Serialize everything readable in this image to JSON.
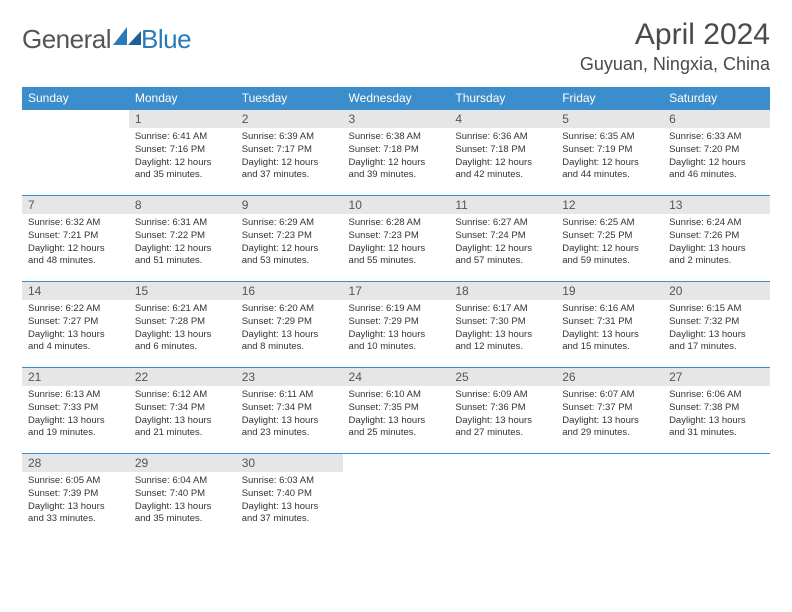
{
  "logo": {
    "textA": "General",
    "textB": "Blue"
  },
  "title": "April 2024",
  "location": "Guyuan, Ningxia, China",
  "colors": {
    "header_bg": "#3c8dcc",
    "header_text": "#ffffff",
    "daynum_bg": "#e6e6e6",
    "cell_border": "#3c8dcc",
    "body_text": "#333333",
    "logo_gray": "#555555",
    "logo_blue": "#2a7ab8"
  },
  "weekdays": [
    "Sunday",
    "Monday",
    "Tuesday",
    "Wednesday",
    "Thursday",
    "Friday",
    "Saturday"
  ],
  "weeks": [
    [
      {
        "n": "",
        "sr": "",
        "ss": "",
        "dl": ""
      },
      {
        "n": "1",
        "sr": "Sunrise: 6:41 AM",
        "ss": "Sunset: 7:16 PM",
        "dl": "Daylight: 12 hours and 35 minutes."
      },
      {
        "n": "2",
        "sr": "Sunrise: 6:39 AM",
        "ss": "Sunset: 7:17 PM",
        "dl": "Daylight: 12 hours and 37 minutes."
      },
      {
        "n": "3",
        "sr": "Sunrise: 6:38 AM",
        "ss": "Sunset: 7:18 PM",
        "dl": "Daylight: 12 hours and 39 minutes."
      },
      {
        "n": "4",
        "sr": "Sunrise: 6:36 AM",
        "ss": "Sunset: 7:18 PM",
        "dl": "Daylight: 12 hours and 42 minutes."
      },
      {
        "n": "5",
        "sr": "Sunrise: 6:35 AM",
        "ss": "Sunset: 7:19 PM",
        "dl": "Daylight: 12 hours and 44 minutes."
      },
      {
        "n": "6",
        "sr": "Sunrise: 6:33 AM",
        "ss": "Sunset: 7:20 PM",
        "dl": "Daylight: 12 hours and 46 minutes."
      }
    ],
    [
      {
        "n": "7",
        "sr": "Sunrise: 6:32 AM",
        "ss": "Sunset: 7:21 PM",
        "dl": "Daylight: 12 hours and 48 minutes."
      },
      {
        "n": "8",
        "sr": "Sunrise: 6:31 AM",
        "ss": "Sunset: 7:22 PM",
        "dl": "Daylight: 12 hours and 51 minutes."
      },
      {
        "n": "9",
        "sr": "Sunrise: 6:29 AM",
        "ss": "Sunset: 7:23 PM",
        "dl": "Daylight: 12 hours and 53 minutes."
      },
      {
        "n": "10",
        "sr": "Sunrise: 6:28 AM",
        "ss": "Sunset: 7:23 PM",
        "dl": "Daylight: 12 hours and 55 minutes."
      },
      {
        "n": "11",
        "sr": "Sunrise: 6:27 AM",
        "ss": "Sunset: 7:24 PM",
        "dl": "Daylight: 12 hours and 57 minutes."
      },
      {
        "n": "12",
        "sr": "Sunrise: 6:25 AM",
        "ss": "Sunset: 7:25 PM",
        "dl": "Daylight: 12 hours and 59 minutes."
      },
      {
        "n": "13",
        "sr": "Sunrise: 6:24 AM",
        "ss": "Sunset: 7:26 PM",
        "dl": "Daylight: 13 hours and 2 minutes."
      }
    ],
    [
      {
        "n": "14",
        "sr": "Sunrise: 6:22 AM",
        "ss": "Sunset: 7:27 PM",
        "dl": "Daylight: 13 hours and 4 minutes."
      },
      {
        "n": "15",
        "sr": "Sunrise: 6:21 AM",
        "ss": "Sunset: 7:28 PM",
        "dl": "Daylight: 13 hours and 6 minutes."
      },
      {
        "n": "16",
        "sr": "Sunrise: 6:20 AM",
        "ss": "Sunset: 7:29 PM",
        "dl": "Daylight: 13 hours and 8 minutes."
      },
      {
        "n": "17",
        "sr": "Sunrise: 6:19 AM",
        "ss": "Sunset: 7:29 PM",
        "dl": "Daylight: 13 hours and 10 minutes."
      },
      {
        "n": "18",
        "sr": "Sunrise: 6:17 AM",
        "ss": "Sunset: 7:30 PM",
        "dl": "Daylight: 13 hours and 12 minutes."
      },
      {
        "n": "19",
        "sr": "Sunrise: 6:16 AM",
        "ss": "Sunset: 7:31 PM",
        "dl": "Daylight: 13 hours and 15 minutes."
      },
      {
        "n": "20",
        "sr": "Sunrise: 6:15 AM",
        "ss": "Sunset: 7:32 PM",
        "dl": "Daylight: 13 hours and 17 minutes."
      }
    ],
    [
      {
        "n": "21",
        "sr": "Sunrise: 6:13 AM",
        "ss": "Sunset: 7:33 PM",
        "dl": "Daylight: 13 hours and 19 minutes."
      },
      {
        "n": "22",
        "sr": "Sunrise: 6:12 AM",
        "ss": "Sunset: 7:34 PM",
        "dl": "Daylight: 13 hours and 21 minutes."
      },
      {
        "n": "23",
        "sr": "Sunrise: 6:11 AM",
        "ss": "Sunset: 7:34 PM",
        "dl": "Daylight: 13 hours and 23 minutes."
      },
      {
        "n": "24",
        "sr": "Sunrise: 6:10 AM",
        "ss": "Sunset: 7:35 PM",
        "dl": "Daylight: 13 hours and 25 minutes."
      },
      {
        "n": "25",
        "sr": "Sunrise: 6:09 AM",
        "ss": "Sunset: 7:36 PM",
        "dl": "Daylight: 13 hours and 27 minutes."
      },
      {
        "n": "26",
        "sr": "Sunrise: 6:07 AM",
        "ss": "Sunset: 7:37 PM",
        "dl": "Daylight: 13 hours and 29 minutes."
      },
      {
        "n": "27",
        "sr": "Sunrise: 6:06 AM",
        "ss": "Sunset: 7:38 PM",
        "dl": "Daylight: 13 hours and 31 minutes."
      }
    ],
    [
      {
        "n": "28",
        "sr": "Sunrise: 6:05 AM",
        "ss": "Sunset: 7:39 PM",
        "dl": "Daylight: 13 hours and 33 minutes."
      },
      {
        "n": "29",
        "sr": "Sunrise: 6:04 AM",
        "ss": "Sunset: 7:40 PM",
        "dl": "Daylight: 13 hours and 35 minutes."
      },
      {
        "n": "30",
        "sr": "Sunrise: 6:03 AM",
        "ss": "Sunset: 7:40 PM",
        "dl": "Daylight: 13 hours and 37 minutes."
      },
      {
        "n": "",
        "sr": "",
        "ss": "",
        "dl": ""
      },
      {
        "n": "",
        "sr": "",
        "ss": "",
        "dl": ""
      },
      {
        "n": "",
        "sr": "",
        "ss": "",
        "dl": ""
      },
      {
        "n": "",
        "sr": "",
        "ss": "",
        "dl": ""
      }
    ]
  ]
}
